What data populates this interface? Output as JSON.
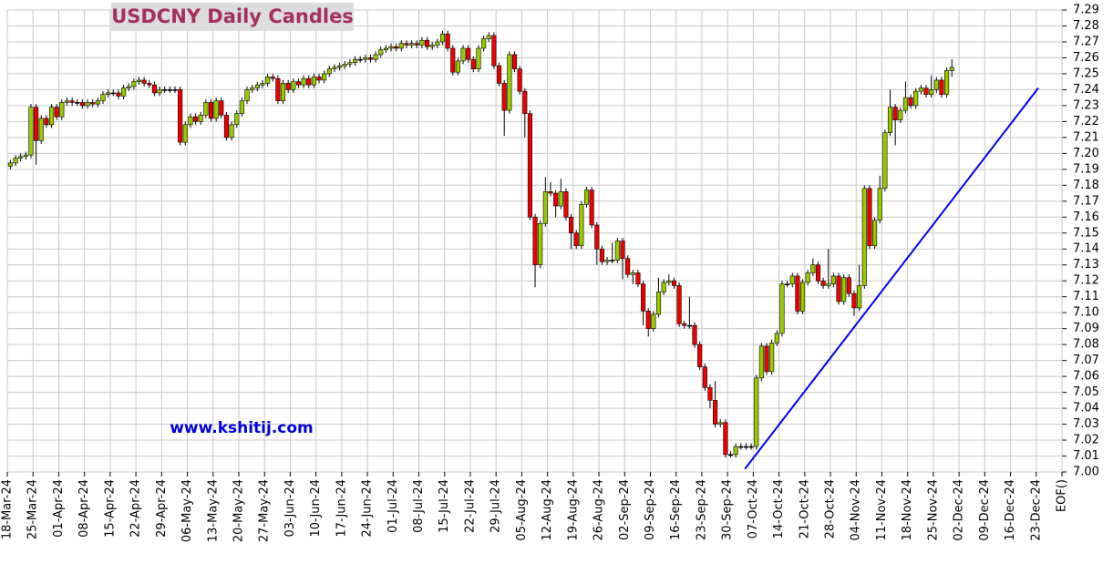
{
  "chart_data": {
    "type": "candlestick",
    "title": "USDCNY Daily Candles",
    "annotation": "www.kshitij.com",
    "grid": true,
    "up_color": "#99cc00",
    "down_color": "#ee0000",
    "xlim": [
      0,
      205
    ],
    "ylim": [
      7.0,
      7.29
    ],
    "open": [
      7.192,
      7.194,
      7.197,
      7.198,
      7.199,
      7.229,
      7.208,
      7.222,
      7.218,
      7.229,
      7.223,
      7.232,
      7.233,
      7.232,
      7.232,
      7.23,
      7.232,
      7.231,
      7.233,
      7.237,
      7.238,
      7.238,
      7.236,
      7.241,
      7.242,
      7.245,
      7.246,
      7.244,
      7.243,
      7.238,
      7.24,
      7.24,
      7.24,
      7.24,
      7.207,
      7.218,
      7.223,
      7.22,
      7.224,
      7.232,
      7.222,
      7.233,
      7.224,
      7.21,
      7.218,
      7.225,
      7.233,
      7.24,
      7.241,
      7.243,
      7.244,
      7.248,
      7.247,
      7.233,
      7.244,
      7.24,
      7.245,
      7.243,
      7.247,
      7.243,
      7.248,
      7.246,
      7.25,
      7.253,
      7.254,
      7.255,
      7.256,
      7.257,
      7.259,
      7.259,
      7.26,
      7.259,
      7.262,
      7.265,
      7.266,
      7.267,
      7.266,
      7.269,
      7.268,
      7.269,
      7.268,
      7.271,
      7.267,
      7.268,
      7.27,
      7.275,
      7.266,
      7.251,
      7.258,
      7.266,
      7.259,
      7.253,
      7.266,
      7.272,
      7.274,
      7.255,
      7.244,
      7.227,
      7.262,
      7.253,
      7.239,
      7.225,
      7.16,
      7.13,
      7.156,
      7.176,
      7.175,
      7.167,
      7.176,
      7.16,
      7.15,
      7.142,
      7.168,
      7.177,
      7.155,
      7.14,
      7.132,
      7.133,
      7.133,
      7.145,
      7.134,
      7.124,
      7.125,
      7.118,
      7.101,
      7.09,
      7.099,
      7.113,
      7.119,
      7.12,
      7.117,
      7.093,
      7.092,
      7.092,
      7.08,
      7.066,
      7.053,
      7.045,
      7.03,
      7.031,
      7.011,
      7.011,
      7.016,
      7.016,
      7.016,
      7.016,
      7.059,
      7.079,
      7.063,
      7.081,
      7.087,
      7.118,
      7.118,
      7.123,
      7.101,
      7.119,
      7.125,
      7.13,
      7.12,
      7.117,
      7.118,
      7.123,
      7.107,
      7.122,
      7.112,
      7.103,
      7.117,
      7.178,
      7.142,
      7.158,
      7.178,
      7.213,
      7.229,
      7.221,
      7.227,
      7.235,
      7.23,
      7.239,
      7.241,
      7.237,
      7.24,
      7.246,
      7.237,
      7.252
    ],
    "high": [
      7.196,
      7.199,
      7.2,
      7.201,
      7.231,
      7.231,
      7.224,
      7.224,
      7.231,
      7.231,
      7.234,
      7.235,
      7.235,
      7.234,
      7.234,
      7.234,
      7.234,
      7.235,
      7.239,
      7.24,
      7.24,
      7.24,
      7.243,
      7.244,
      7.247,
      7.248,
      7.248,
      7.246,
      7.245,
      7.242,
      7.242,
      7.242,
      7.242,
      7.242,
      7.22,
      7.225,
      7.225,
      7.226,
      7.234,
      7.234,
      7.235,
      7.235,
      7.226,
      7.22,
      7.227,
      7.235,
      7.242,
      7.243,
      7.245,
      7.246,
      7.25,
      7.25,
      7.249,
      7.246,
      7.246,
      7.247,
      7.247,
      7.249,
      7.249,
      7.25,
      7.25,
      7.252,
      7.255,
      7.256,
      7.257,
      7.258,
      7.259,
      7.261,
      7.261,
      7.262,
      7.262,
      7.264,
      7.267,
      7.268,
      7.269,
      7.269,
      7.271,
      7.271,
      7.271,
      7.271,
      7.273,
      7.273,
      7.27,
      7.272,
      7.277,
      7.277,
      7.268,
      7.26,
      7.268,
      7.268,
      7.261,
      7.268,
      7.274,
      7.276,
      7.276,
      7.257,
      7.246,
      7.264,
      7.264,
      7.255,
      7.241,
      7.227,
      7.162,
      7.158,
      7.185,
      7.182,
      7.177,
      7.184,
      7.178,
      7.162,
      7.152,
      7.17,
      7.179,
      7.179,
      7.157,
      7.142,
      7.135,
      7.144,
      7.147,
      7.147,
      7.136,
      7.127,
      7.127,
      7.12,
      7.103,
      7.101,
      7.122,
      7.121,
      7.124,
      7.122,
      7.119,
      7.095,
      7.11,
      7.094,
      7.082,
      7.068,
      7.055,
      7.057,
      7.033,
      7.033,
      7.013,
      7.018,
      7.018,
      7.018,
      7.018,
      7.061,
      7.081,
      7.081,
      7.083,
      7.089,
      7.12,
      7.12,
      7.125,
      7.125,
      7.121,
      7.127,
      7.134,
      7.132,
      7.122,
      7.14,
      7.125,
      7.125,
      7.124,
      7.124,
      7.114,
      7.13,
      7.18,
      7.18,
      7.16,
      7.186,
      7.215,
      7.24,
      7.231,
      7.229,
      7.245,
      7.237,
      7.241,
      7.243,
      7.243,
      7.249,
      7.248,
      7.248,
      7.254,
      7.259
    ],
    "low": [
      7.19,
      7.192,
      7.195,
      7.196,
      7.197,
      7.193,
      7.206,
      7.216,
      7.216,
      7.221,
      7.221,
      7.23,
      7.23,
      7.23,
      7.228,
      7.228,
      7.229,
      7.229,
      7.231,
      7.235,
      7.236,
      7.234,
      7.234,
      7.239,
      7.24,
      7.243,
      7.242,
      7.241,
      7.236,
      7.236,
      7.238,
      7.238,
      7.238,
      7.205,
      7.205,
      7.216,
      7.218,
      7.218,
      7.222,
      7.22,
      7.22,
      7.222,
      7.208,
      7.208,
      7.216,
      7.223,
      7.231,
      7.238,
      7.239,
      7.241,
      7.242,
      7.245,
      7.231,
      7.231,
      7.238,
      7.238,
      7.241,
      7.241,
      7.241,
      7.241,
      7.244,
      7.244,
      7.248,
      7.251,
      7.252,
      7.253,
      7.254,
      7.255,
      7.257,
      7.257,
      7.257,
      7.257,
      7.26,
      7.263,
      7.264,
      7.264,
      7.264,
      7.266,
      7.266,
      7.266,
      7.266,
      7.265,
      7.265,
      7.266,
      7.268,
      7.264,
      7.249,
      7.249,
      7.256,
      7.257,
      7.251,
      7.251,
      7.264,
      7.27,
      7.253,
      7.242,
      7.211,
      7.225,
      7.251,
      7.237,
      7.21,
      7.158,
      7.116,
      7.128,
      7.154,
      7.173,
      7.16,
      7.165,
      7.158,
      7.14,
      7.14,
      7.14,
      7.166,
      7.153,
      7.13,
      7.13,
      7.13,
      7.131,
      7.131,
      7.121,
      7.122,
      7.118,
      7.116,
      7.092,
      7.085,
      7.088,
      7.097,
      7.111,
      7.117,
      7.115,
      7.091,
      7.09,
      7.09,
      7.078,
      7.064,
      7.051,
      7.04,
      7.028,
      7.028,
      7.009,
      7.009,
      7.009,
      7.014,
      7.014,
      7.014,
      7.014,
      7.057,
      7.061,
      7.061,
      7.079,
      7.085,
      7.116,
      7.116,
      7.099,
      7.099,
      7.117,
      7.123,
      7.118,
      7.115,
      7.115,
      7.116,
      7.105,
      7.105,
      7.11,
      7.098,
      7.101,
      7.115,
      7.14,
      7.14,
      7.156,
      7.176,
      7.211,
      7.205,
      7.219,
      7.225,
      7.228,
      7.228,
      7.237,
      7.235,
      7.235,
      7.238,
      7.235,
      7.235,
      7.248
    ],
    "close": [
      7.194,
      7.197,
      7.198,
      7.199,
      7.229,
      7.208,
      7.222,
      7.218,
      7.229,
      7.223,
      7.232,
      7.233,
      7.232,
      7.232,
      7.23,
      7.232,
      7.231,
      7.233,
      7.237,
      7.238,
      7.238,
      7.236,
      7.241,
      7.242,
      7.245,
      7.246,
      7.244,
      7.243,
      7.238,
      7.24,
      7.24,
      7.24,
      7.24,
      7.207,
      7.218,
      7.223,
      7.22,
      7.224,
      7.232,
      7.222,
      7.233,
      7.224,
      7.21,
      7.218,
      7.225,
      7.233,
      7.24,
      7.241,
      7.243,
      7.244,
      7.248,
      7.247,
      7.233,
      7.244,
      7.24,
      7.245,
      7.243,
      7.247,
      7.243,
      7.248,
      7.246,
      7.25,
      7.253,
      7.254,
      7.255,
      7.256,
      7.257,
      7.259,
      7.259,
      7.26,
      7.259,
      7.262,
      7.265,
      7.266,
      7.267,
      7.266,
      7.269,
      7.268,
      7.269,
      7.268,
      7.271,
      7.267,
      7.268,
      7.27,
      7.275,
      7.266,
      7.251,
      7.258,
      7.266,
      7.259,
      7.253,
      7.266,
      7.272,
      7.274,
      7.255,
      7.244,
      7.227,
      7.262,
      7.253,
      7.239,
      7.225,
      7.16,
      7.13,
      7.156,
      7.176,
      7.175,
      7.167,
      7.176,
      7.16,
      7.15,
      7.142,
      7.168,
      7.177,
      7.155,
      7.14,
      7.132,
      7.133,
      7.133,
      7.145,
      7.134,
      7.124,
      7.125,
      7.118,
      7.101,
      7.09,
      7.099,
      7.113,
      7.119,
      7.12,
      7.117,
      7.093,
      7.092,
      7.092,
      7.08,
      7.066,
      7.053,
      7.045,
      7.03,
      7.031,
      7.011,
      7.011,
      7.016,
      7.016,
      7.016,
      7.016,
      7.059,
      7.079,
      7.063,
      7.081,
      7.087,
      7.118,
      7.118,
      7.123,
      7.101,
      7.119,
      7.125,
      7.13,
      7.12,
      7.117,
      7.118,
      7.123,
      7.107,
      7.122,
      7.112,
      7.103,
      7.117,
      7.178,
      7.142,
      7.158,
      7.178,
      7.213,
      7.229,
      7.221,
      7.227,
      7.235,
      7.23,
      7.239,
      7.241,
      7.237,
      7.24,
      7.246,
      7.237,
      7.252,
      7.254
    ],
    "trendline": {
      "x": [
        143.4,
        200.4
      ],
      "y": [
        7.002,
        7.241
      ],
      "color": "#0000ee"
    },
    "yticks": [
      {
        "value": 7.0,
        "label": "7.00"
      },
      7.01,
      7.02,
      7.03,
      7.04,
      7.05,
      7.06,
      7.07,
      7.08,
      7.09,
      {
        "value": 7.1,
        "label": "7.10"
      },
      7.11,
      7.12,
      7.13,
      7.14,
      7.15,
      7.16,
      7.17,
      7.18,
      7.19,
      {
        "value": 7.2,
        "label": "7.20"
      },
      7.21,
      7.22,
      7.23,
      7.24,
      7.25,
      7.26,
      7.27,
      7.28,
      7.29
    ],
    "xticks": [
      {
        "value": 0,
        "label": "18-Mar-24"
      },
      {
        "value": 5,
        "label": "25-Mar-24"
      },
      {
        "value": 10,
        "label": "01-Apr-24"
      },
      {
        "value": 15,
        "label": "08-Apr-24"
      },
      {
        "value": 20,
        "label": "15-Apr-24"
      },
      {
        "value": 25,
        "label": "22-Apr-24"
      },
      {
        "value": 30,
        "label": "29-Apr-24"
      },
      {
        "value": 35,
        "label": "06-May-24"
      },
      {
        "value": 40,
        "label": "13-May-24"
      },
      {
        "value": 45,
        "label": "20-May-24"
      },
      {
        "value": 50,
        "label": "27-May-24"
      },
      {
        "value": 55,
        "label": "03-Jun-24"
      },
      {
        "value": 60,
        "label": "10-Jun-24"
      },
      {
        "value": 65,
        "label": "17-Jun-24"
      },
      {
        "value": 70,
        "label": "24-Jun-24"
      },
      {
        "value": 75,
        "label": "01-Jul-24"
      },
      {
        "value": 80,
        "label": "08-Jul-24"
      },
      {
        "value": 85,
        "label": "15-Jul-24"
      },
      {
        "value": 90,
        "label": "22-Jul-24"
      },
      {
        "value": 95,
        "label": "29-Jul-24"
      },
      {
        "value": 100,
        "label": "05-Aug-24"
      },
      {
        "value": 105,
        "label": "12-Aug-24"
      },
      {
        "value": 110,
        "label": "19-Aug-24"
      },
      {
        "value": 115,
        "label": "26-Aug-24"
      },
      {
        "value": 120,
        "label": "02-Sep-24"
      },
      {
        "value": 125,
        "label": "09-Sep-24"
      },
      {
        "value": 130,
        "label": "16-Sep-24"
      },
      {
        "value": 135,
        "label": "23-Sep-24"
      },
      {
        "value": 140,
        "label": "30-Sep-24"
      },
      {
        "value": 145,
        "label": "07-Oct-24"
      },
      {
        "value": 150,
        "label": "14-Oct-24"
      },
      {
        "value": 155,
        "label": "21-Oct-24"
      },
      {
        "value": 160,
        "label": "28-Oct-24"
      },
      {
        "value": 165,
        "label": "04-Nov-24"
      },
      {
        "value": 170,
        "label": "11-Nov-24"
      },
      {
        "value": 175,
        "label": "18-Nov-24"
      },
      {
        "value": 180,
        "label": "25-Nov-24"
      },
      {
        "value": 185,
        "label": "02-Dec-24"
      },
      {
        "value": 190,
        "label": "09-Dec-24"
      },
      {
        "value": 195,
        "label": "16-Dec-24"
      },
      {
        "value": 200,
        "label": "23-Dec-24"
      },
      {
        "value": 205,
        "label": "EOF()"
      }
    ]
  }
}
